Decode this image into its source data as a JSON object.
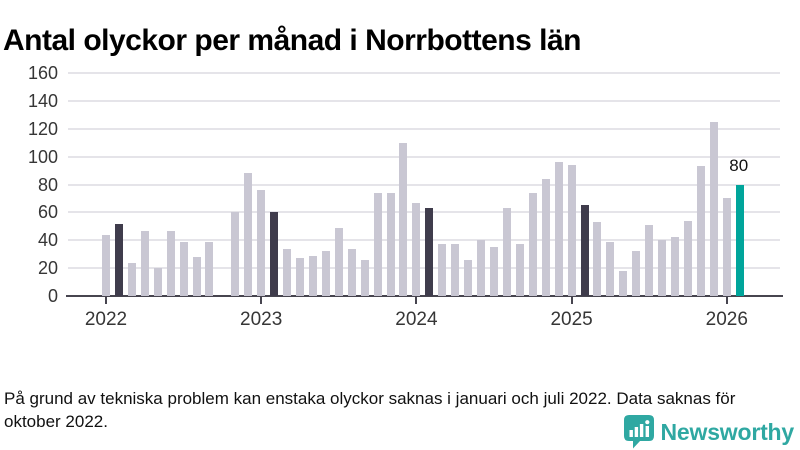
{
  "title": "Antal olyckor per månad i Norrbottens län",
  "footnote": "På grund av tekniska problem kan enstaka olyckor saknas i januari och juli 2022. Data saknas för oktober 2022.",
  "logo": {
    "text": "Newsworthy"
  },
  "colors": {
    "bar_default": "#c9c7d3",
    "bar_highlight": "#3f3c4c",
    "bar_current": "#00a59b",
    "brand_teal": "#2fa8a2",
    "gridline": "#e5e4e9",
    "axis": "#47454f",
    "tick_label": "#363636"
  },
  "chart_data": {
    "type": "bar",
    "title": "Antal olyckor per månad i Norrbottens län",
    "xlabel": "",
    "ylabel": "",
    "ylim": [
      0,
      160
    ],
    "yticks": [
      0,
      20,
      40,
      60,
      80,
      100,
      120,
      140,
      160
    ],
    "grid": true,
    "legend": "none",
    "x": [
      "2022-01",
      "2022-02",
      "2022-03",
      "2022-04",
      "2022-05",
      "2022-06",
      "2022-07",
      "2022-08",
      "2022-09",
      "2022-10",
      "2022-11",
      "2022-12",
      "2023-01",
      "2023-02",
      "2023-03",
      "2023-04",
      "2023-05",
      "2023-06",
      "2023-07",
      "2023-08",
      "2023-09",
      "2023-10",
      "2023-11",
      "2023-12",
      "2024-01",
      "2024-02",
      "2024-03",
      "2024-04",
      "2024-05",
      "2024-06",
      "2024-07",
      "2024-08",
      "2024-09",
      "2024-10",
      "2024-11",
      "2024-12",
      "2025-01",
      "2025-02",
      "2025-03",
      "2025-04",
      "2025-05",
      "2025-06",
      "2025-07",
      "2025-08",
      "2025-09",
      "2025-10",
      "2025-11",
      "2025-12",
      "2026-01",
      "2026-02"
    ],
    "values": [
      44,
      52,
      24,
      47,
      20,
      47,
      39,
      28,
      39,
      null,
      60,
      88,
      76,
      60,
      34,
      27,
      29,
      32,
      49,
      34,
      26,
      74,
      74,
      110,
      67,
      63,
      37,
      37,
      26,
      40,
      35,
      63,
      37,
      74,
      84,
      96,
      94,
      65,
      53,
      39,
      18,
      32,
      51,
      40,
      42,
      54,
      93,
      125,
      70,
      80
    ],
    "missing_indices": [
      9
    ],
    "highlight_indices": [
      1,
      13,
      25,
      37
    ],
    "current_index": 49,
    "annotation": {
      "index": 49,
      "text": "80"
    },
    "xticks": [
      {
        "label": "2022",
        "index": 0
      },
      {
        "label": "2023",
        "index": 12
      },
      {
        "label": "2024",
        "index": 24
      },
      {
        "label": "2025",
        "index": 36
      },
      {
        "label": "2026",
        "index": 48
      }
    ]
  }
}
